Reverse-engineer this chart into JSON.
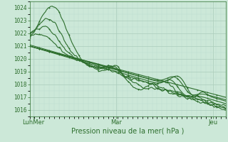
{
  "title": "Pression niveau de la mer( hPa )",
  "bg_color": "#cce8d8",
  "grid_major_color": "#aaccbb",
  "grid_minor_color": "#bbddd0",
  "line_color": "#2d6e2d",
  "ylim": [
    1015.5,
    1024.5
  ],
  "yticks": [
    1016,
    1017,
    1018,
    1019,
    1020,
    1021,
    1022,
    1023,
    1024
  ],
  "xtick_labels": [
    "LuhMer",
    "Mar",
    "Jeu"
  ],
  "xtick_pos": [
    0.02,
    0.44,
    0.935
  ],
  "num_points": 200,
  "figsize": [
    3.2,
    2.0
  ],
  "dpi": 100
}
